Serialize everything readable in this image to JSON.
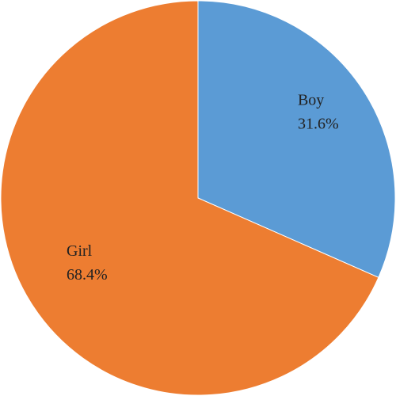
{
  "chart_data": {
    "type": "pie",
    "categories": [
      "Boy",
      "Girl"
    ],
    "values": [
      31.6,
      68.4
    ],
    "value_labels": [
      "31.6%",
      "68.4%"
    ],
    "colors": [
      "#5b9bd5",
      "#ed7d31"
    ]
  }
}
